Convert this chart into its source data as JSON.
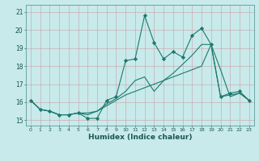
{
  "xlabel": "Humidex (Indice chaleur)",
  "background_color": "#c8eaea",
  "line_color": "#1a7a6e",
  "xlim": [
    -0.5,
    23.5
  ],
  "ylim": [
    14.7,
    21.4
  ],
  "yticks": [
    15,
    16,
    17,
    18,
    19,
    20,
    21
  ],
  "xticks": [
    0,
    1,
    2,
    3,
    4,
    5,
    6,
    7,
    8,
    9,
    10,
    11,
    12,
    13,
    14,
    15,
    16,
    17,
    18,
    19,
    20,
    21,
    22,
    23
  ],
  "series1_smooth": [
    16.1,
    15.6,
    15.5,
    15.3,
    15.3,
    15.4,
    15.4,
    15.5,
    15.8,
    16.1,
    16.4,
    16.6,
    16.8,
    17.0,
    17.2,
    17.4,
    17.6,
    17.8,
    18.0,
    19.2,
    17.8,
    16.3,
    16.5,
    16.1
  ],
  "series2_mid": [
    16.1,
    15.6,
    15.5,
    15.3,
    15.3,
    15.4,
    15.3,
    15.5,
    15.9,
    16.2,
    16.6,
    17.2,
    17.4,
    16.6,
    17.2,
    17.6,
    18.1,
    18.6,
    19.2,
    19.2,
    16.3,
    16.4,
    16.5,
    16.1
  ],
  "series3_spiky": [
    16.1,
    15.6,
    15.5,
    15.3,
    15.3,
    15.4,
    15.1,
    15.1,
    16.1,
    16.3,
    18.3,
    18.4,
    20.8,
    19.3,
    18.4,
    18.8,
    18.5,
    19.7,
    20.1,
    19.2,
    16.3,
    16.5,
    16.6,
    16.1
  ]
}
